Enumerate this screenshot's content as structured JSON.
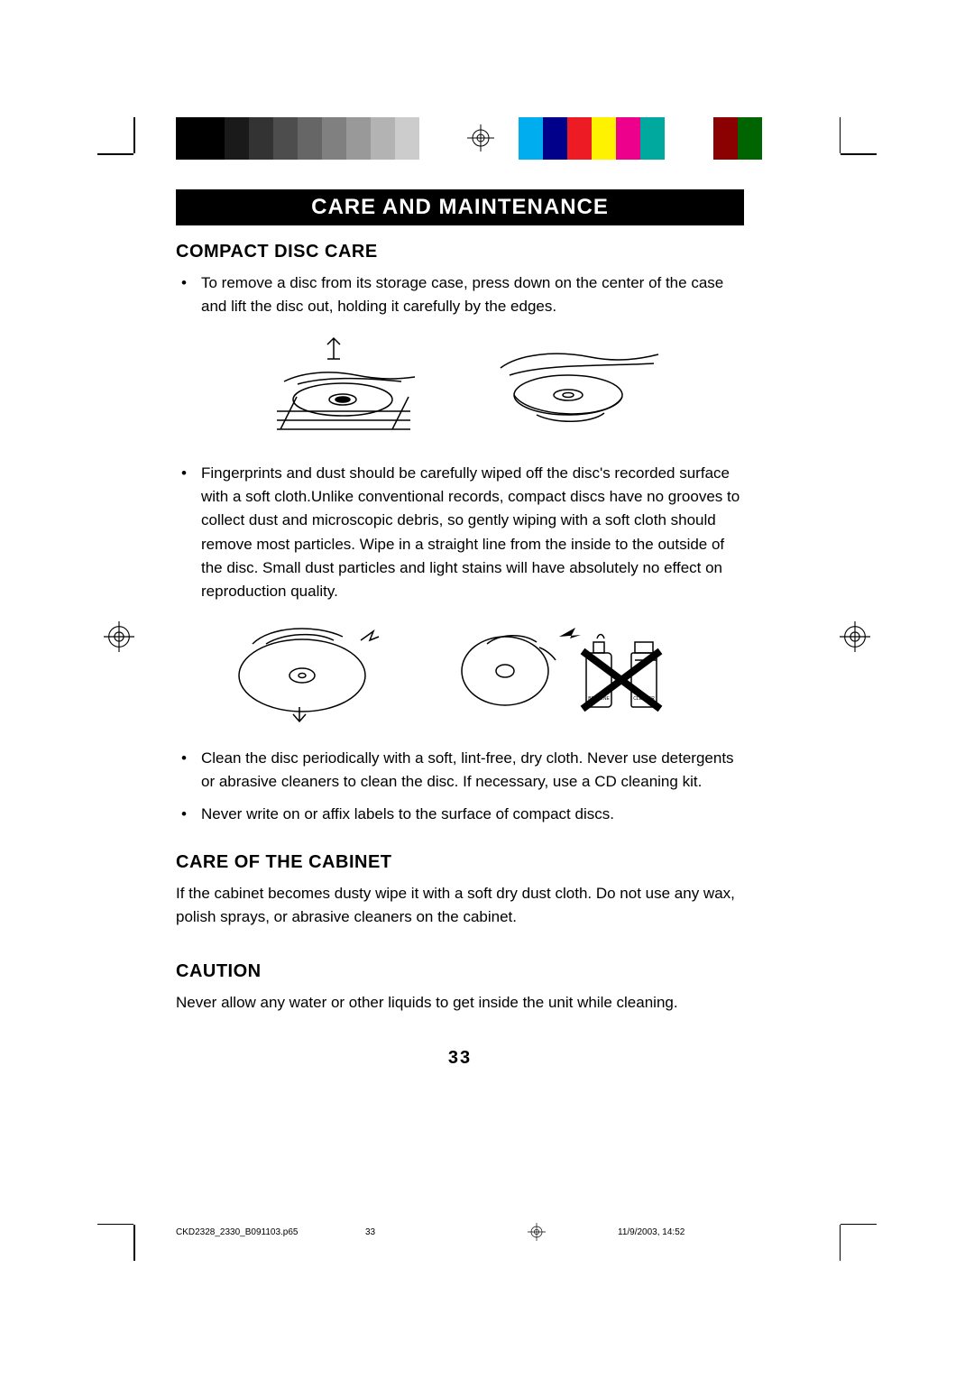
{
  "colors": {
    "grayscale": [
      "#000000",
      "#000000",
      "#1a1a1a",
      "#333333",
      "#4d4d4d",
      "#666666",
      "#808080",
      "#999999",
      "#b3b3b3",
      "#cccccc",
      "#ffffff"
    ],
    "process": [
      "#00aeef",
      "#00008b",
      "#ed1c24",
      "#fff200",
      "#ec008c",
      "#00a99d",
      "#ffffff",
      "#ffffff",
      "#8b0000",
      "#006400"
    ]
  },
  "title": "CARE AND MAINTENANCE",
  "sections": {
    "disc": {
      "heading": "COMPACT DISC CARE",
      "bullets": [
        "To remove a disc from its storage case, press down on the center of the case and lift the disc out, holding it carefully by the edges.",
        "Fingerprints and dust should be carefully wiped off the disc's recorded surface with a soft cloth.Unlike conventional records, compact discs have no grooves to collect dust and microscopic debris, so gently wiping with a soft cloth should remove most particles. Wipe in a straight line from the inside to the outside of the disc. Small dust particles and light stains will have absolutely no effect on reproduction quality.",
        "Clean the disc periodically with a soft, lint-free, dry cloth. Never use detergents or abrasive cleaners to clean the disc. If necessary, use a CD cleaning kit.",
        "Never write on or affix labels to the surface of compact discs."
      ]
    },
    "cabinet": {
      "heading": "CARE OF THE CABINET",
      "body": "If the cabinet becomes dusty wipe it with a soft dry dust cloth.  Do not use any wax, polish sprays, or abrasive cleaners on the cabinet."
    },
    "caution": {
      "heading": "CAUTION",
      "body": "Never allow any water or other liquids to get inside the unit while cleaning."
    }
  },
  "pageNumber": "33",
  "footer": {
    "filename": "CKD2328_2330_B091103.p65",
    "page": "33",
    "datetime": "11/9/2003, 14:52"
  },
  "labels": {
    "benzene": "BENZENE",
    "cleaner": "CLEANER"
  }
}
